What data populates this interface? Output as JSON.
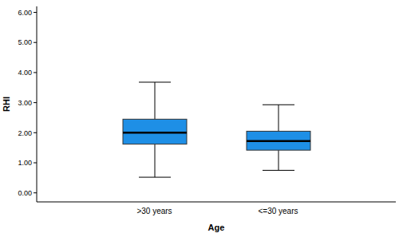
{
  "chart_data": {
    "type": "box",
    "categories": [
      ">30 years",
      "<=30 years"
    ],
    "min": [
      0.52,
      0.75
    ],
    "q1": [
      1.62,
      1.42
    ],
    "median": [
      2.0,
      1.72
    ],
    "q3": [
      2.45,
      2.05
    ],
    "max": [
      3.68,
      2.93
    ],
    "color": "#1e8fe6",
    "x_label": "Age",
    "y_label": "RHI",
    "ylim": [
      -0.3,
      6.2
    ],
    "yticks": [
      {
        "value": 0,
        "label": "0.00"
      },
      {
        "value": 1,
        "label": "1.00"
      },
      {
        "value": 2,
        "label": "2.00"
      },
      {
        "value": 3,
        "label": "3.00"
      },
      {
        "value": 4,
        "label": "4.00"
      },
      {
        "value": 5,
        "label": "5.00"
      },
      {
        "value": 6,
        "label": "6.00"
      }
    ],
    "grid": false
  }
}
